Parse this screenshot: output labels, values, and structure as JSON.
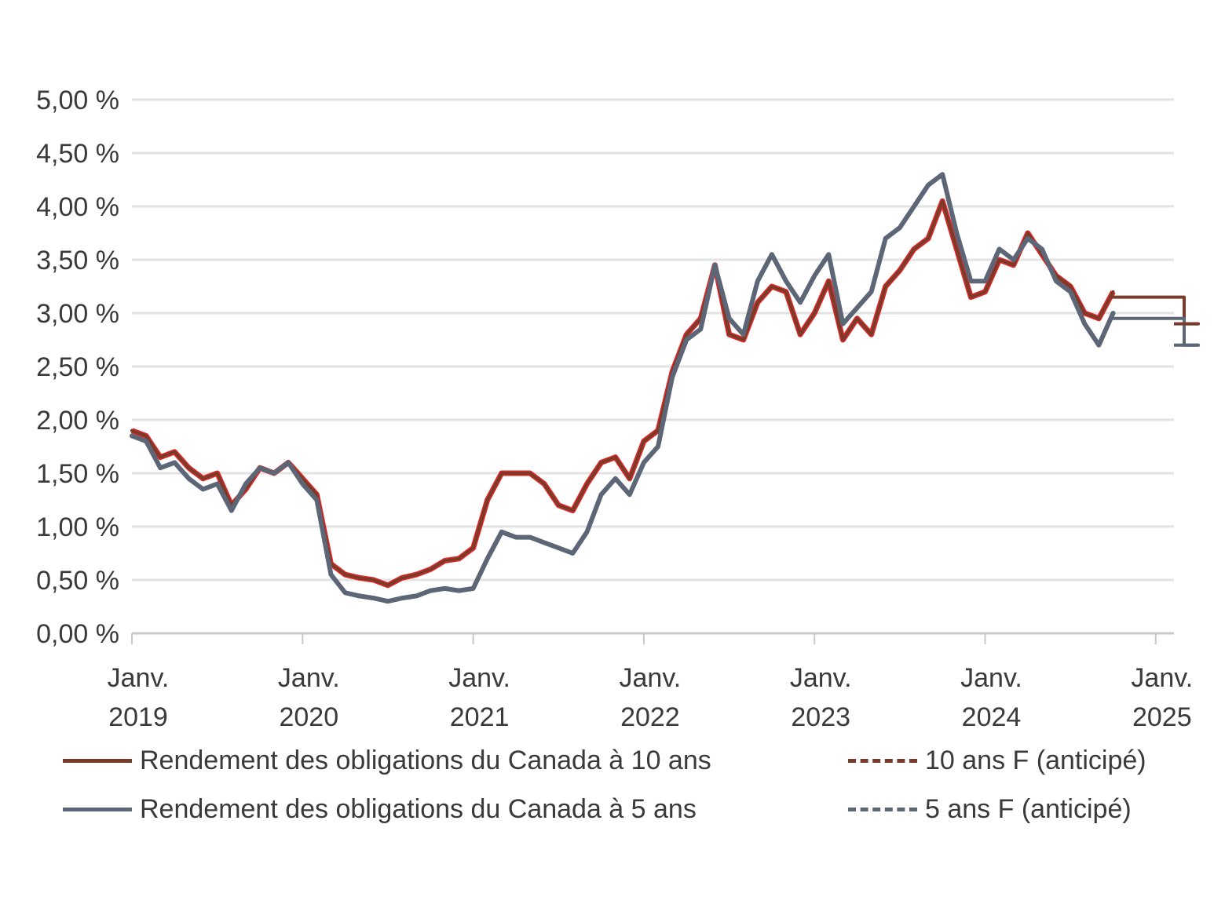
{
  "colors": {
    "yield10": "#7a3b2a",
    "yield10_noise": "#e00000",
    "yield5": "#5d6676",
    "grid": "#e3e3e3",
    "axis": "#c8c8c8"
  },
  "chart_data": {
    "type": "line",
    "title": "",
    "xlabel": "",
    "ylabel": "",
    "ylim": [
      0,
      5
    ],
    "y_ticks": [
      "0,00 %",
      "0,50 %",
      "1,00 %",
      "1,50 %",
      "2,00 %",
      "2,50 %",
      "3,00 %",
      "3,50 %",
      "4,00 %",
      "4,50 %",
      "5,00 %"
    ],
    "x_ticks": [
      {
        "date": "2019-01",
        "line1": "Janv.",
        "line2": "2019"
      },
      {
        "date": "2020-01",
        "line1": "Janv.",
        "line2": "2020"
      },
      {
        "date": "2021-01",
        "line1": "Janv.",
        "line2": "2021"
      },
      {
        "date": "2022-01",
        "line1": "Janv.",
        "line2": "2022"
      },
      {
        "date": "2023-01",
        "line1": "Janv.",
        "line2": "2023"
      },
      {
        "date": "2024-01",
        "line1": "Janv.",
        "line2": "2024"
      },
      {
        "date": "2025-01",
        "line1": "Janv.",
        "line2": "2025"
      }
    ],
    "grid": true,
    "legend_position": "bottom",
    "series": [
      {
        "name": "Rendement des obligations du Canada à 10 ans",
        "style": "solid",
        "x": [
          "2019-01",
          "2019-02",
          "2019-03",
          "2019-04",
          "2019-05",
          "2019-06",
          "2019-07",
          "2019-08",
          "2019-09",
          "2019-10",
          "2019-11",
          "2019-12",
          "2020-01",
          "2020-02",
          "2020-03",
          "2020-04",
          "2020-05",
          "2020-06",
          "2020-07",
          "2020-08",
          "2020-09",
          "2020-10",
          "2020-11",
          "2020-12",
          "2021-01",
          "2021-02",
          "2021-03",
          "2021-04",
          "2021-05",
          "2021-06",
          "2021-07",
          "2021-08",
          "2021-09",
          "2021-10",
          "2021-11",
          "2021-12",
          "2022-01",
          "2022-02",
          "2022-03",
          "2022-04",
          "2022-05",
          "2022-06",
          "2022-07",
          "2022-08",
          "2022-09",
          "2022-10",
          "2022-11",
          "2022-12",
          "2023-01",
          "2023-02",
          "2023-03",
          "2023-04",
          "2023-05",
          "2023-06",
          "2023-07",
          "2023-08",
          "2023-09",
          "2023-10",
          "2023-11",
          "2023-12",
          "2024-01",
          "2024-02",
          "2024-03",
          "2024-04",
          "2024-05",
          "2024-06",
          "2024-07",
          "2024-08",
          "2024-09",
          "2024-10"
        ],
        "values": [
          1.9,
          1.85,
          1.65,
          1.7,
          1.55,
          1.45,
          1.5,
          1.2,
          1.35,
          1.55,
          1.5,
          1.6,
          1.45,
          1.3,
          0.65,
          0.55,
          0.52,
          0.5,
          0.45,
          0.52,
          0.55,
          0.6,
          0.68,
          0.7,
          0.8,
          1.25,
          1.5,
          1.5,
          1.5,
          1.4,
          1.2,
          1.15,
          1.4,
          1.6,
          1.65,
          1.45,
          1.8,
          1.9,
          2.45,
          2.8,
          2.95,
          3.45,
          2.8,
          2.75,
          3.1,
          3.25,
          3.2,
          2.8,
          3.0,
          3.3,
          2.75,
          2.95,
          2.8,
          3.25,
          3.4,
          3.6,
          3.7,
          4.05,
          3.6,
          3.15,
          3.2,
          3.5,
          3.45,
          3.75,
          3.55,
          3.35,
          3.25,
          3.0,
          2.95,
          3.2
        ]
      },
      {
        "name": "Rendement des obligations du Canada à 5 ans",
        "style": "solid",
        "x": [
          "2019-01",
          "2019-02",
          "2019-03",
          "2019-04",
          "2019-05",
          "2019-06",
          "2019-07",
          "2019-08",
          "2019-09",
          "2019-10",
          "2019-11",
          "2019-12",
          "2020-01",
          "2020-02",
          "2020-03",
          "2020-04",
          "2020-05",
          "2020-06",
          "2020-07",
          "2020-08",
          "2020-09",
          "2020-10",
          "2020-11",
          "2020-12",
          "2021-01",
          "2021-02",
          "2021-03",
          "2021-04",
          "2021-05",
          "2021-06",
          "2021-07",
          "2021-08",
          "2021-09",
          "2021-10",
          "2021-11",
          "2021-12",
          "2022-01",
          "2022-02",
          "2022-03",
          "2022-04",
          "2022-05",
          "2022-06",
          "2022-07",
          "2022-08",
          "2022-09",
          "2022-10",
          "2022-11",
          "2022-12",
          "2023-01",
          "2023-02",
          "2023-03",
          "2023-04",
          "2023-05",
          "2023-06",
          "2023-07",
          "2023-08",
          "2023-09",
          "2023-10",
          "2023-11",
          "2023-12",
          "2024-01",
          "2024-02",
          "2024-03",
          "2024-04",
          "2024-05",
          "2024-06",
          "2024-07",
          "2024-08",
          "2024-09",
          "2024-10"
        ],
        "values": [
          1.85,
          1.8,
          1.55,
          1.6,
          1.45,
          1.35,
          1.4,
          1.15,
          1.4,
          1.55,
          1.5,
          1.6,
          1.4,
          1.25,
          0.55,
          0.38,
          0.35,
          0.33,
          0.3,
          0.33,
          0.35,
          0.4,
          0.42,
          0.4,
          0.42,
          0.7,
          0.95,
          0.9,
          0.9,
          0.85,
          0.8,
          0.75,
          0.95,
          1.3,
          1.45,
          1.3,
          1.6,
          1.75,
          2.4,
          2.75,
          2.85,
          3.45,
          2.95,
          2.8,
          3.3,
          3.55,
          3.3,
          3.1,
          3.35,
          3.55,
          2.9,
          3.05,
          3.2,
          3.7,
          3.8,
          4.0,
          4.2,
          4.3,
          3.75,
          3.3,
          3.3,
          3.6,
          3.5,
          3.7,
          3.6,
          3.3,
          3.2,
          2.9,
          2.7,
          3.0
        ]
      },
      {
        "name": "10 ans F (anticipé)",
        "style": "step",
        "x": [
          "2024-10",
          "2024-12",
          "2025-03",
          "2025-03",
          "2025-04"
        ],
        "values": [
          3.15,
          3.15,
          3.05,
          2.9,
          2.9
        ]
      },
      {
        "name": "5 ans F (anticipé)",
        "style": "step",
        "x": [
          "2024-10",
          "2024-12",
          "2025-03",
          "2025-03",
          "2025-04"
        ],
        "values": [
          2.95,
          2.95,
          2.8,
          2.7,
          2.7
        ]
      }
    ]
  },
  "legend": {
    "item_10y": "Rendement des obligations du Canada à 10 ans",
    "item_5y": "Rendement des obligations du Canada à 5 ans",
    "item_10y_f": "10 ans F (anticipé)",
    "item_5y_f": "5 ans F (anticipé)"
  }
}
